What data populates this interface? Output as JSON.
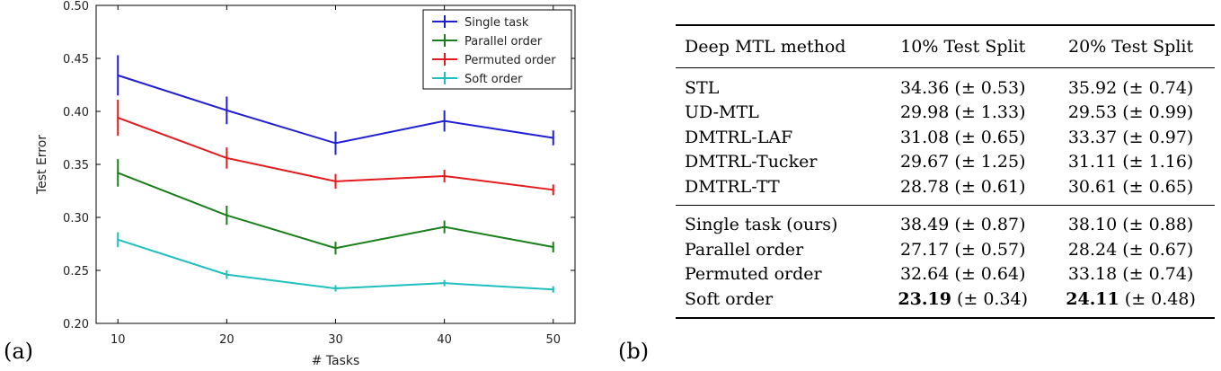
{
  "chart_data": {
    "type": "line",
    "title": "",
    "xlabel": "# Tasks",
    "ylabel": "Test Error",
    "x": [
      10,
      20,
      30,
      40,
      50
    ],
    "xlim": [
      8,
      52
    ],
    "ylim": [
      0.2,
      0.5
    ],
    "yticks": [
      "0.20",
      "0.25",
      "0.30",
      "0.35",
      "0.40",
      "0.45",
      "0.50"
    ],
    "xticks": [
      "10",
      "20",
      "30",
      "40",
      "50"
    ],
    "legend_position": "top-right",
    "series": [
      {
        "name": "Single task",
        "color": "#1f1fd6",
        "values": [
          0.434,
          0.401,
          0.37,
          0.391,
          0.375
        ],
        "errors": [
          0.019,
          0.013,
          0.011,
          0.01,
          0.007
        ]
      },
      {
        "name": "Parallel order",
        "color": "#1a7f1a",
        "values": [
          0.342,
          0.302,
          0.271,
          0.291,
          0.272
        ],
        "errors": [
          0.013,
          0.009,
          0.006,
          0.006,
          0.005
        ]
      },
      {
        "name": "Permuted order",
        "color": "#e41a1c",
        "values": [
          0.394,
          0.356,
          0.334,
          0.339,
          0.326
        ],
        "errors": [
          0.017,
          0.01,
          0.007,
          0.006,
          0.005
        ]
      },
      {
        "name": "Soft order",
        "color": "#1fbfbf",
        "values": [
          0.279,
          0.246,
          0.233,
          0.238,
          0.232
        ],
        "errors": [
          0.007,
          0.004,
          0.003,
          0.003,
          0.003
        ]
      }
    ]
  },
  "panel_labels": {
    "a": "(a)",
    "b": "(b)"
  },
  "table": {
    "headers": [
      "Deep MTL method",
      "10% Test Split",
      "20% Test Split"
    ],
    "group1": [
      {
        "method": "STL",
        "split10": "34.36 (± 0.53)",
        "split20": "35.92 (± 0.74)"
      },
      {
        "method": "UD-MTL",
        "split10": "29.98 (± 1.33)",
        "split20": "29.53 (± 0.99)"
      },
      {
        "method": "DMTRL-LAF",
        "split10": "31.08 (± 0.65)",
        "split20": "33.37 (± 0.97)"
      },
      {
        "method": "DMTRL-Tucker",
        "split10": "29.67 (± 1.25)",
        "split20": "31.11 (± 1.16)"
      },
      {
        "method": "DMTRL-TT",
        "split10": "28.78 (± 0.61)",
        "split20": "30.61 (± 0.65)"
      }
    ],
    "group2": [
      {
        "method": "Single task (ours)",
        "split10": "38.49 (± 0.87)",
        "split20": "38.10 (± 0.88)"
      },
      {
        "method": "Parallel order",
        "split10": "27.17 (± 0.57)",
        "split20": "28.24 (± 0.67)"
      },
      {
        "method": "Permuted order",
        "split10": "32.64 (± 0.64)",
        "split20": "33.18 (± 0.74)"
      },
      {
        "method": "Soft order",
        "split10_bold": "23.19",
        "split10_rest": " (± 0.34)",
        "split20_bold": "24.11",
        "split20_rest": " (± 0.48)"
      }
    ]
  }
}
